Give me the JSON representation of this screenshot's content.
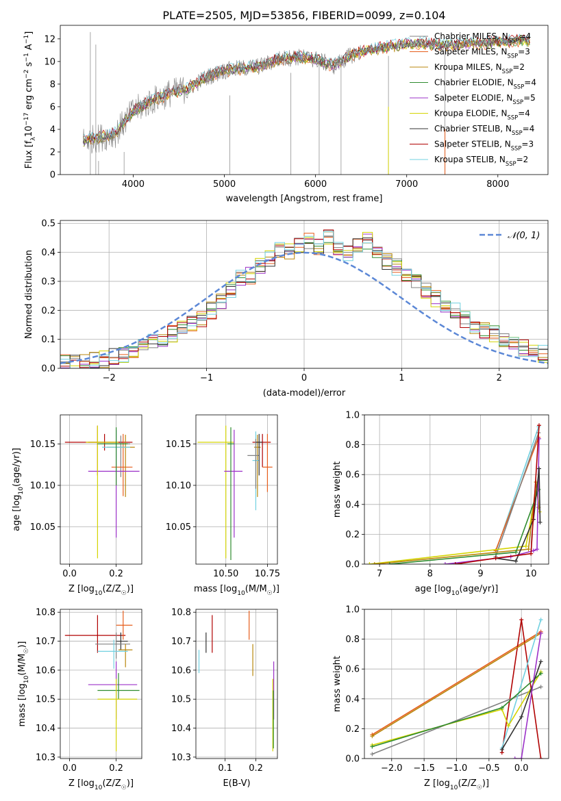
{
  "figure": {
    "title": "PLATE=2505, MJD=53856, FIBERID=0099, z=0.104"
  },
  "series": [
    {
      "name": "Chabrier MILES",
      "nssp": "4",
      "color": "#808080"
    },
    {
      "name": "Salpeter MILES",
      "nssp": "3",
      "color": "#e65c1a"
    },
    {
      "name": "Kroupa MILES",
      "nssp": "2",
      "color": "#b8860b"
    },
    {
      "name": "Chabrier ELODIE",
      "nssp": "4",
      "color": "#2e8b2e"
    },
    {
      "name": "Salpeter ELODIE",
      "nssp": "5",
      "color": "#9b30c8"
    },
    {
      "name": "Kroupa ELODIE",
      "nssp": "4",
      "color": "#d4d400"
    },
    {
      "name": "Chabrier STELIB",
      "nssp": "4",
      "color": "#303030"
    },
    {
      "name": "Salpeter STELIB",
      "nssp": "3",
      "color": "#b00000"
    },
    {
      "name": "Kroupa STELIB",
      "nssp": "2",
      "color": "#70d0e0"
    }
  ],
  "chart_data": [
    {
      "id": "spectrum",
      "type": "line",
      "title": "PLATE=2505, MJD=53856, FIBERID=0099, z=0.104",
      "xlabel": "wavelength [Angstrom, rest frame]",
      "ylabel_parts": [
        "Flux [f",
        "λ",
        "10",
        "−17",
        " erg cm",
        "−2",
        " s",
        "−1",
        " A",
        "−1",
        "]"
      ],
      "xlim": [
        3200,
        8550
      ],
      "ylim": [
        0,
        13.2
      ],
      "xticks": [
        4000,
        5000,
        6000,
        7000,
        8000
      ],
      "yticks": [
        0,
        2,
        4,
        6,
        8,
        10,
        12
      ],
      "model": {
        "x": [
          3450,
          3600,
          3800,
          4000,
          4200,
          4400,
          4600,
          4800,
          5000,
          5200,
          5400,
          5600,
          5800,
          6000,
          6200,
          6400,
          6600,
          6800,
          7000,
          7200,
          7400,
          7600,
          7800,
          8000,
          8200,
          8350
        ],
        "y": [
          3.0,
          3.2,
          3.6,
          5.6,
          6.5,
          7.2,
          7.6,
          8.6,
          9.2,
          9.4,
          9.6,
          10.2,
          10.4,
          10.2,
          9.6,
          10.6,
          11.0,
          11.3,
          11.5,
          11.6,
          11.4,
          11.5,
          11.6,
          11.7,
          11.8,
          11.9
        ]
      },
      "legend_loc": "upper right"
    },
    {
      "id": "residuals",
      "type": "histogram",
      "xlabel": "(data-model)/error",
      "ylabel": "Normed distribution",
      "xlim": [
        -2.5,
        2.5
      ],
      "ylim": [
        0,
        0.51
      ],
      "xticks": [
        -2,
        -1,
        0,
        1,
        2
      ],
      "yticks": [
        0.0,
        0.1,
        0.2,
        0.3,
        0.4,
        0.5
      ],
      "bin_width": 0.1,
      "bin_start": -2.5,
      "reference": {
        "name": "𝒩(0, 1)",
        "style": "dashed",
        "color": "#5b87d6"
      },
      "values": [
        0.02,
        0.02,
        0.02,
        0.03,
        0.03,
        0.04,
        0.05,
        0.06,
        0.08,
        0.09,
        0.1,
        0.12,
        0.14,
        0.15,
        0.17,
        0.2,
        0.23,
        0.27,
        0.31,
        0.32,
        0.35,
        0.38,
        0.41,
        0.4,
        0.42,
        0.44,
        0.42,
        0.45,
        0.41,
        0.4,
        0.42,
        0.44,
        0.39,
        0.37,
        0.35,
        0.33,
        0.3,
        0.27,
        0.24,
        0.22,
        0.2,
        0.17,
        0.15,
        0.13,
        0.12,
        0.1,
        0.08,
        0.07,
        0.06,
        0.05
      ]
    },
    {
      "id": "age-vs-Z",
      "type": "errorbar",
      "xlabel_parts": [
        "Z [log",
        "10",
        "(Z/Z",
        "☉",
        ")]"
      ],
      "ylabel_parts": [
        "age  [log",
        "10",
        "(age/yr)]"
      ],
      "xlim": [
        -0.04,
        0.31
      ],
      "ylim": [
        10.005,
        10.185
      ],
      "xticks": [
        0.0,
        0.2
      ],
      "xticklabels": [
        "0.0",
        "0.2"
      ],
      "yticks": [
        10.05,
        10.1,
        10.15
      ],
      "points": [
        {
          "s": 7,
          "x": 0.15,
          "y": 10.152,
          "xe": [
            0.07,
            0.08
          ],
          "ye": [
            0.01,
            0.01
          ]
        },
        {
          "s": 7,
          "x": 0.12,
          "y": 10.152,
          "xe": [
            0.14,
            0.15
          ],
          "ye": [
            0.04,
            0.02
          ]
        },
        {
          "s": 0,
          "x": 0.22,
          "y": 10.15,
          "xe": [
            0.09,
            0.04
          ],
          "ye": [
            0.04,
            0.01
          ]
        },
        {
          "s": 1,
          "x": 0.23,
          "y": 10.122,
          "xe": [
            0.05,
            0.04
          ],
          "ye": [
            0.035,
            0.04
          ]
        },
        {
          "s": 2,
          "x": 0.24,
          "y": 10.146,
          "xe": [
            0.08,
            0.04
          ],
          "ye": [
            0.06,
            0.015
          ]
        },
        {
          "s": 4,
          "x": 0.2,
          "y": 10.117,
          "xe": [
            0.12,
            0.1
          ],
          "ye": [
            0.08,
            0.05
          ]
        },
        {
          "s": 8,
          "x": 0.2,
          "y": 10.146,
          "xe": [
            0.06,
            0.06
          ],
          "ye": [
            0.03,
            0.02
          ]
        },
        {
          "s": 5,
          "x": 0.12,
          "y": 10.152,
          "xe": [
            0.05,
            0.09
          ],
          "ye": [
            0.14,
            0.02
          ]
        },
        {
          "s": 3,
          "x": 0.2,
          "y": 10.15,
          "xe": [
            0.08,
            0.05
          ],
          "ye": [
            0.05,
            0.02
          ]
        }
      ]
    },
    {
      "id": "age-vs-mass",
      "type": "errorbar",
      "xlabel_parts": [
        "mass [log",
        "10",
        "(M/M",
        "☉",
        ")]"
      ],
      "ylabel_parts": [],
      "xlim": [
        0.32,
        0.81
      ],
      "ylim": [
        10.005,
        10.185
      ],
      "xticks": [
        0.5,
        0.75
      ],
      "xticklabels": [
        "10.50",
        "10.75"
      ],
      "yticks": [
        10.05,
        10.1,
        10.15
      ],
      "points": [
        {
          "s": 7,
          "x": 0.72,
          "y": 10.152,
          "xe": [
            0.06,
            0.05
          ],
          "ye": [
            0.03,
            0.01
          ]
        },
        {
          "s": 5,
          "x": 0.5,
          "y": 10.152,
          "xe": [
            0.17,
            0.05
          ],
          "ye": [
            0.14,
            0.02
          ]
        },
        {
          "s": 4,
          "x": 0.55,
          "y": 10.117,
          "xe": [
            0.06,
            0.05
          ],
          "ye": [
            0.08,
            0.05
          ]
        },
        {
          "s": 3,
          "x": 0.53,
          "y": 10.15,
          "xe": [
            0.02,
            0.02
          ],
          "ye": [
            0.14,
            0.02
          ]
        },
        {
          "s": 1,
          "x": 0.75,
          "y": 10.122,
          "xe": [
            0.03,
            0.03
          ],
          "ye": [
            0.03,
            0.04
          ]
        },
        {
          "s": 2,
          "x": 0.69,
          "y": 10.146,
          "xe": [
            0.02,
            0.02
          ],
          "ye": [
            0.06,
            0.015
          ]
        },
        {
          "s": 8,
          "x": 0.68,
          "y": 10.13,
          "xe": [
            0.02,
            0.02
          ],
          "ye": [
            0.06,
            0.035
          ]
        },
        {
          "s": 0,
          "x": 0.68,
          "y": 10.136,
          "xe": [
            0.05,
            0.02
          ],
          "ye": [
            0.04,
            0.02
          ]
        },
        {
          "s": 6,
          "x": 0.7,
          "y": 10.152,
          "xe": [
            0.02,
            0.02
          ],
          "ye": [
            0.04,
            0.01
          ]
        }
      ]
    },
    {
      "id": "weight-vs-age",
      "type": "line",
      "xlabel_parts": [
        "age  [log",
        "10",
        "(age/yr)]"
      ],
      "ylabel": "mass weight",
      "xlim": [
        6.7,
        10.35
      ],
      "ylim": [
        0,
        1.0
      ],
      "xticks": [
        7,
        8,
        9,
        10
      ],
      "xticklabels": [
        "7",
        "8",
        "9",
        "10"
      ],
      "yticks": [
        0.0,
        0.2,
        0.4,
        0.6,
        0.8,
        1.0
      ],
      "yticklabels": [
        "0.0",
        "0.2",
        "0.4",
        "0.6",
        "0.8",
        "1.0"
      ],
      "lines": [
        {
          "s": 8,
          "x": [
            9.3,
            10.15
          ],
          "y": [
            0.08,
            0.92
          ]
        },
        {
          "s": 1,
          "x": [
            9.3,
            10.15
          ],
          "y": [
            0.09,
            0.85
          ]
        },
        {
          "s": 0,
          "x": [
            9.3,
            10.15
          ],
          "y": [
            0.05,
            0.88
          ]
        },
        {
          "s": 5,
          "x": [
            6.8,
            9.9,
            10.12,
            10.17
          ],
          "y": [
            0.0,
            0.12,
            0.52,
            0.35
          ]
        },
        {
          "s": 2,
          "x": [
            6.9,
            9.95,
            10.1,
            10.15
          ],
          "y": [
            0.0,
            0.1,
            0.55,
            0.38
          ]
        },
        {
          "s": 3,
          "x": [
            7.2,
            9.7,
            10.15
          ],
          "y": [
            0.0,
            0.08,
            0.5
          ]
        },
        {
          "s": 4,
          "x": [
            8.3,
            9.6,
            10.05,
            10.12,
            10.16
          ],
          "y": [
            0.0,
            0.05,
            0.09,
            0.1,
            0.84
          ]
        },
        {
          "s": 6,
          "x": [
            9.3,
            9.7,
            10.05,
            10.16,
            10.18
          ],
          "y": [
            0.04,
            0.02,
            0.3,
            0.64,
            0.28
          ]
        },
        {
          "s": 7,
          "x": [
            8.5,
            9.3,
            10.0,
            10.16
          ],
          "y": [
            0.0,
            0.04,
            0.07,
            0.93
          ]
        }
      ]
    },
    {
      "id": "mass-vs-Z",
      "type": "errorbar",
      "xlabel_parts": [
        "Z [log",
        "10",
        "(Z/Z",
        "☉",
        ")]"
      ],
      "ylabel_parts": [
        "mass [log",
        "10",
        "(M/M",
        "☉",
        ")]"
      ],
      "xlim": [
        -0.04,
        0.31
      ],
      "ylim": [
        10.295,
        10.81
      ],
      "xticks": [
        0.0,
        0.2
      ],
      "xticklabels": [
        "0.0",
        "0.2"
      ],
      "yticks": [
        10.3,
        10.4,
        10.5,
        10.6,
        10.7,
        10.8
      ],
      "yticklabels": [
        "10.3",
        "10.4",
        "10.5",
        "10.6",
        "10.7",
        "10.8"
      ],
      "points": [
        {
          "s": 7,
          "x": 0.12,
          "y": 10.72,
          "xe": [
            0.14,
            0.12
          ],
          "ye": [
            0.06,
            0.07
          ]
        },
        {
          "s": 1,
          "x": 0.23,
          "y": 10.755,
          "xe": [
            0.03,
            0.04
          ],
          "ye": [
            0.05,
            0.05
          ]
        },
        {
          "s": 6,
          "x": 0.22,
          "y": 10.7,
          "xe": [
            0.02,
            0.03
          ],
          "ye": [
            0.03,
            0.03
          ]
        },
        {
          "s": 0,
          "x": 0.2,
          "y": 10.69,
          "xe": [
            0.09,
            0.06
          ],
          "ye": [
            0.05,
            0.04
          ]
        },
        {
          "s": 2,
          "x": 0.24,
          "y": 10.67,
          "xe": [
            0.03,
            0.03
          ],
          "ye": [
            0.06,
            0.02
          ]
        },
        {
          "s": 8,
          "x": 0.19,
          "y": 10.665,
          "xe": [
            0.07,
            0.06
          ],
          "ye": [
            0.06,
            0.04
          ]
        },
        {
          "s": 4,
          "x": 0.2,
          "y": 10.55,
          "xe": [
            0.12,
            0.09
          ],
          "ye": [
            0.12,
            0.08
          ]
        },
        {
          "s": 3,
          "x": 0.21,
          "y": 10.53,
          "xe": [
            0.09,
            0.09
          ],
          "ye": [
            0.03,
            0.06
          ]
        },
        {
          "s": 5,
          "x": 0.2,
          "y": 10.5,
          "xe": [
            0.08,
            0.09
          ],
          "ye": [
            0.18,
            0.07
          ]
        }
      ]
    },
    {
      "id": "mass-vs-ebv",
      "type": "errorbar",
      "xlabel": "E(B-V)",
      "ylabel_parts": [],
      "xlim": [
        0.005,
        0.27
      ],
      "ylim": [
        10.295,
        10.81
      ],
      "xticks": [
        0.1,
        0.2
      ],
      "xticklabels": [
        "0.1",
        "0.2"
      ],
      "yticks": [
        10.3,
        10.4,
        10.5,
        10.6,
        10.7,
        10.8
      ],
      "yticklabels": [
        "10.3",
        "10.4",
        "10.5",
        "10.6",
        "10.7",
        "10.8"
      ],
      "points": [
        {
          "s": 8,
          "x": 0.015,
          "y": 10.63,
          "xe": [
            0,
            0
          ],
          "ye": [
            0.04,
            0.04
          ]
        },
        {
          "s": 6,
          "x": 0.038,
          "y": 10.69,
          "xe": [
            0,
            0
          ],
          "ye": [
            0.03,
            0.04
          ]
        },
        {
          "s": 7,
          "x": 0.058,
          "y": 10.72,
          "xe": [
            0,
            0
          ],
          "ye": [
            0.06,
            0.07
          ]
        },
        {
          "s": 1,
          "x": 0.178,
          "y": 10.755,
          "xe": [
            0,
            0
          ],
          "ye": [
            0.05,
            0.05
          ]
        },
        {
          "s": 2,
          "x": 0.19,
          "y": 10.64,
          "xe": [
            0,
            0
          ],
          "ye": [
            0.06,
            0.05
          ]
        },
        {
          "s": 4,
          "x": 0.258,
          "y": 10.55,
          "xe": [
            0,
            0
          ],
          "ye": [
            0.12,
            0.08
          ]
        },
        {
          "s": 5,
          "x": 0.255,
          "y": 10.45,
          "xe": [
            0,
            0
          ],
          "ye": [
            0.13,
            0.12
          ]
        },
        {
          "s": 3,
          "x": 0.257,
          "y": 10.45,
          "xe": [
            0,
            0
          ],
          "ye": [
            0.12,
            0.08
          ]
        }
      ]
    },
    {
      "id": "weight-vs-Z",
      "type": "line",
      "xlabel_parts": [
        "Z [log",
        "10",
        "(Z/Z",
        "☉",
        ")]"
      ],
      "ylabel": "mass weight",
      "xlim": [
        -2.42,
        0.42
      ],
      "ylim": [
        0,
        1.0
      ],
      "xticks": [
        -2.0,
        -1.5,
        -1.0,
        -0.5,
        0.0
      ],
      "xticklabels": [
        "−2.0",
        "−1.5",
        "−1.0",
        "−0.5",
        "0.0"
      ],
      "yticks": [
        0.0,
        0.2,
        0.4,
        0.6,
        0.8,
        1.0
      ],
      "yticklabels": [
        "0.0",
        "0.2",
        "0.4",
        "0.6",
        "0.8",
        "1.0"
      ],
      "lines": [
        {
          "s": 1,
          "x": [
            -2.3,
            0.3
          ],
          "y": [
            0.16,
            0.85
          ]
        },
        {
          "s": 7,
          "x": [
            -0.3,
            0.0,
            0.3
          ],
          "y": [
            0.04,
            0.93,
            0.0
          ]
        },
        {
          "s": 0,
          "x": [
            -2.3,
            0.3
          ],
          "y": [
            0.03,
            0.48
          ]
        },
        {
          "s": 2,
          "x": [
            -2.3,
            0.3
          ],
          "y": [
            0.15,
            0.84
          ]
        },
        {
          "s": 8,
          "x": [
            -0.3,
            0.3
          ],
          "y": [
            0.07,
            0.93
          ]
        },
        {
          "s": 5,
          "x": [
            -2.3,
            -0.3,
            -0.2,
            0.3
          ],
          "y": [
            0.09,
            0.33,
            0.22,
            0.58
          ]
        },
        {
          "s": 3,
          "x": [
            -2.3,
            -0.3,
            0.3
          ],
          "y": [
            0.08,
            0.34,
            0.57
          ]
        },
        {
          "s": 6,
          "x": [
            -0.3,
            0.0,
            0.3
          ],
          "y": [
            0.06,
            0.28,
            0.65
          ]
        },
        {
          "s": 4,
          "x": [
            -0.1,
            0.0,
            0.3
          ],
          "y": [
            0.0,
            0.0,
            0.84
          ]
        }
      ]
    }
  ]
}
